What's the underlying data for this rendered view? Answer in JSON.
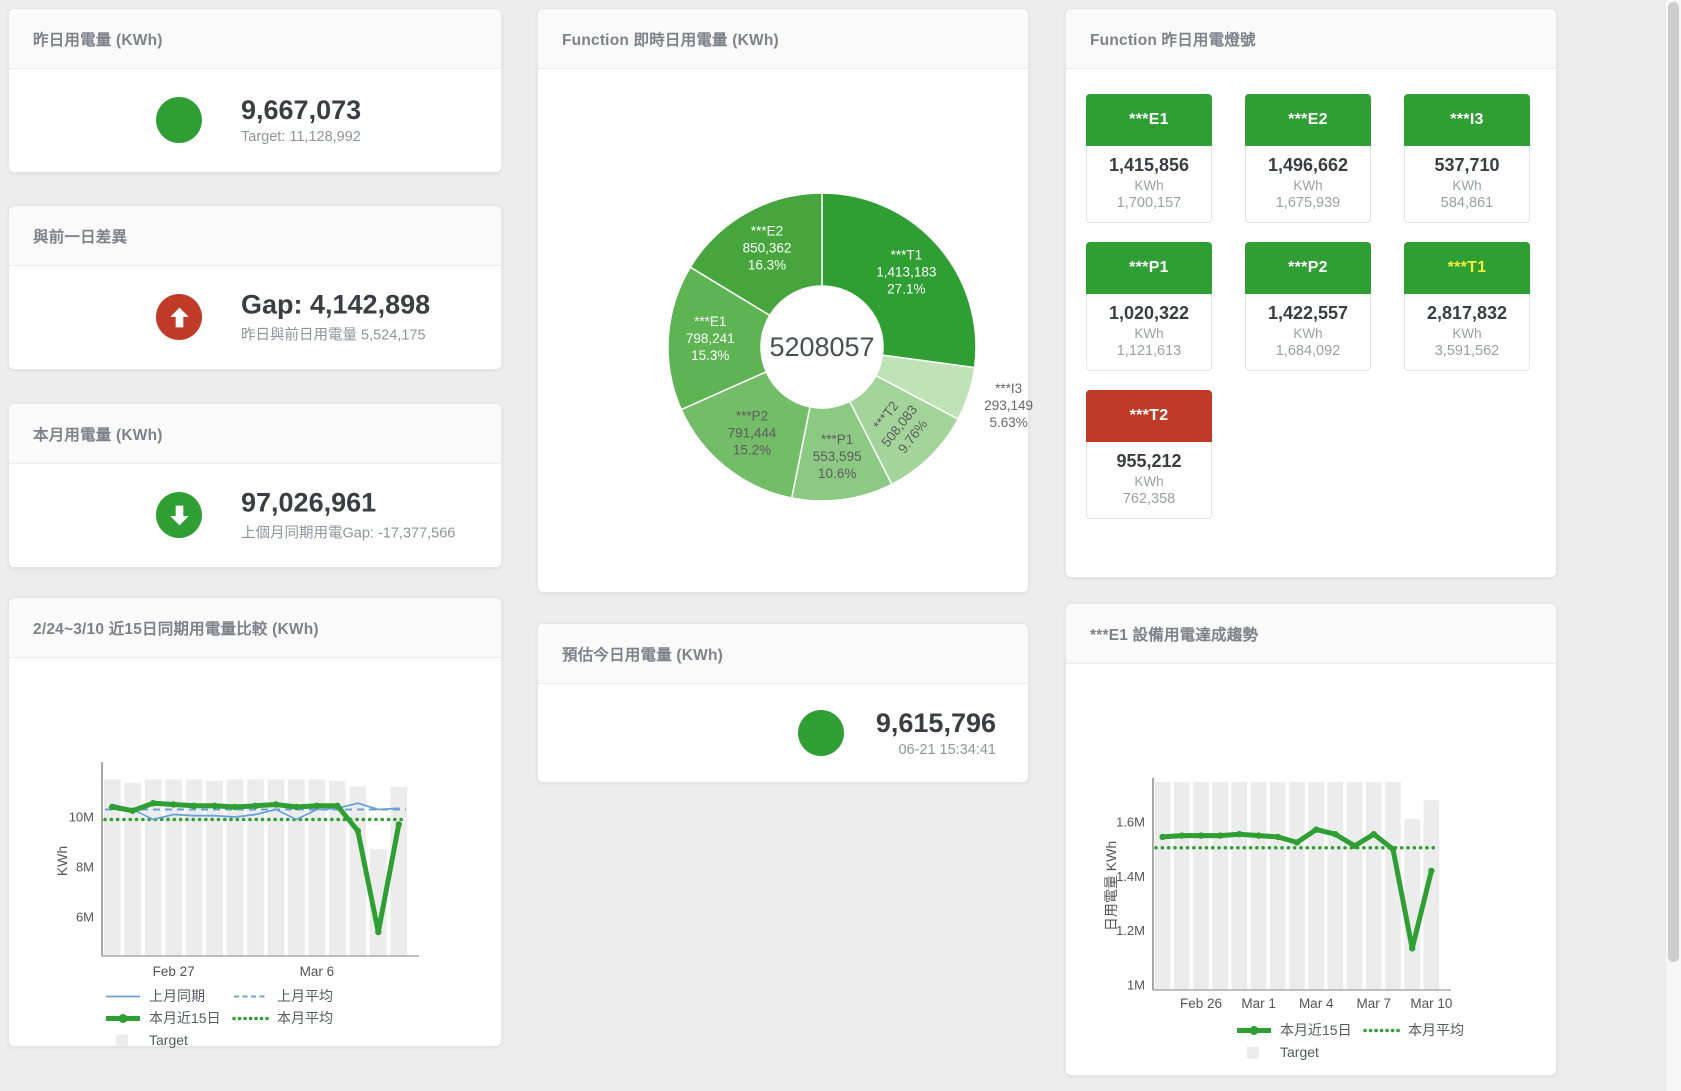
{
  "colors": {
    "green": "#2f9e33",
    "red": "#c03a28",
    "blue": "#68a1d8",
    "bar_gray": "#ececec",
    "yellow_label": "#f6ef3e"
  },
  "kpi_cards": {
    "yesterday": {
      "title": "昨日用電量 (KWh)",
      "value": "9,667,073",
      "subtitle": "Target: 11,128,992",
      "status_color": "#2f9e33",
      "arrow": "none"
    },
    "diff_prev_day": {
      "title": "與前一日差異",
      "value": "Gap: 4,142,898",
      "subtitle": "昨日與前日用電量 5,524,175",
      "status_color": "#c03a28",
      "arrow": "up"
    },
    "month": {
      "title": "本月用電量 (KWh)",
      "value": "97,026,961",
      "subtitle": "上個月同期用電Gap: -17,377,566",
      "status_color": "#2f9e33",
      "arrow": "down"
    },
    "estimate_today": {
      "title": "預估今日用電量 (KWh)",
      "value": "9,615,796",
      "subtitle": "06-21 15:34:41",
      "status_color": "#2f9e33",
      "arrow": "none"
    }
  },
  "tiles_panel": {
    "title": "Function 昨日用電燈號",
    "unit": "KWh",
    "tiles": [
      {
        "label": "***E1",
        "value": "1,415,856",
        "target": "1,700,157",
        "header_color": "#2f9e33",
        "label_color": "#ffffff"
      },
      {
        "label": "***E2",
        "value": "1,496,662",
        "target": "1,675,939",
        "header_color": "#2f9e33",
        "label_color": "#ffffff"
      },
      {
        "label": "***I3",
        "value": "537,710",
        "target": "584,861",
        "header_color": "#2f9e33",
        "label_color": "#ffffff"
      },
      {
        "label": "***P1",
        "value": "1,020,322",
        "target": "1,121,613",
        "header_color": "#2f9e33",
        "label_color": "#ffffff"
      },
      {
        "label": "***P2",
        "value": "1,422,557",
        "target": "1,684,092",
        "header_color": "#2f9e33",
        "label_color": "#ffffff"
      },
      {
        "label": "***T1",
        "value": "2,817,832",
        "target": "3,591,562",
        "header_color": "#2f9e33",
        "label_color": "#f6ef3e"
      },
      {
        "label": "***T2",
        "value": "955,212",
        "target": "762,358",
        "header_color": "#c03a28",
        "label_color": "#ffffff"
      }
    ]
  },
  "chart_data": [
    {
      "id": "function_realtime_donut",
      "type": "pie",
      "title": "Function 即時日用電量 (KWh)",
      "center_total": "5208057",
      "slices": [
        {
          "name": "***T1",
          "value": 1413183,
          "value_label": "1,413,183",
          "pct_label": "27.1%",
          "color": "#2f9e33",
          "text_color": "#ffffff"
        },
        {
          "name": "***I3",
          "value": 293149,
          "value_label": "293,149",
          "pct_label": "5.63%",
          "color": "#bfe2b6",
          "text_color": "#666666",
          "outside": true
        },
        {
          "name": "***T2",
          "value": 508083,
          "value_label": "508,083",
          "pct_label": "9.76%",
          "color": "#a3d59a",
          "text_color": "#5d5d5d",
          "rotate": -52
        },
        {
          "name": "***P1",
          "value": 553595,
          "value_label": "553,595",
          "pct_label": "10.6%",
          "color": "#8cc983",
          "text_color": "#5d5d5d"
        },
        {
          "name": "***P2",
          "value": 791444,
          "value_label": "791,444",
          "pct_label": "15.2%",
          "color": "#74bd68",
          "text_color": "#5d5d5d"
        },
        {
          "name": "***E1",
          "value": 798241,
          "value_label": "798,241",
          "pct_label": "15.3%",
          "color": "#5eb353",
          "text_color": "#ffffff"
        },
        {
          "name": "***E2",
          "value": 850362,
          "value_label": "850,362",
          "pct_label": "16.3%",
          "color": "#46a63d",
          "text_color": "#ffffff"
        }
      ]
    },
    {
      "id": "compare_15day",
      "type": "line",
      "title": "2/24~3/10 近15日同期用電量比較 (KWh)",
      "ylabel": "KWh",
      "ylim_millions": [
        4.44,
        12.04
      ],
      "yticks": [
        {
          "v": 6,
          "label": "6M"
        },
        {
          "v": 8,
          "label": "8M"
        },
        {
          "v": 10,
          "label": "10M"
        }
      ],
      "xticks": [
        {
          "day": 4,
          "label": "Feb 27"
        },
        {
          "day": 11,
          "label": "Mar 6"
        }
      ],
      "target_bars": [
        11.5,
        11.38,
        11.5,
        11.5,
        11.5,
        11.45,
        11.5,
        11.5,
        11.5,
        11.5,
        11.5,
        11.45,
        11.22,
        8.72,
        11.2
      ],
      "series": [
        {
          "name": "上月同期",
          "style": "line",
          "color": "#68a1d8",
          "width": 1.8,
          "values": [
            10.5,
            10.3,
            9.9,
            10.1,
            10.05,
            10.05,
            10.0,
            10.1,
            10.3,
            9.9,
            10.3,
            10.35,
            10.55,
            10.3,
            10.35
          ]
        },
        {
          "name": "上月平均",
          "style": "dashed",
          "color": "#68a1d8",
          "width": 2,
          "constant": 10.3
        },
        {
          "name": "本月近15日",
          "style": "line",
          "color": "#2f9e33",
          "width": 5,
          "values": [
            10.4,
            10.25,
            10.55,
            10.5,
            10.45,
            10.45,
            10.4,
            10.45,
            10.5,
            10.4,
            10.45,
            10.45,
            9.45,
            5.4,
            9.7
          ]
        },
        {
          "name": "本月平均",
          "style": "dotted",
          "color": "#2f9e33",
          "width": 3.5,
          "constant": 9.9
        },
        {
          "name": "Target",
          "style": "bar",
          "color": "#ececec"
        }
      ]
    },
    {
      "id": "e1_trend",
      "type": "line",
      "title": "***E1 設備用電達成趨勢",
      "ylabel": "日用電量 KWh",
      "ylim_millions": [
        0.982,
        1.747
      ],
      "yticks": [
        {
          "v": 1,
          "label": "1M"
        },
        {
          "v": 1.2,
          "label": "1.2M"
        },
        {
          "v": 1.4,
          "label": "1.4M"
        },
        {
          "v": 1.6,
          "label": "1.6M"
        }
      ],
      "xticks": [
        {
          "day": 3,
          "label": "Feb 26"
        },
        {
          "day": 6,
          "label": "Mar 1"
        },
        {
          "day": 9,
          "label": "Mar 4"
        },
        {
          "day": 12,
          "label": "Mar 7"
        },
        {
          "day": 15,
          "label": "Mar 10"
        }
      ],
      "target_bars": [
        1.75,
        1.75,
        1.75,
        1.75,
        1.75,
        1.75,
        1.75,
        1.75,
        1.75,
        1.75,
        1.75,
        1.75,
        1.75,
        1.61,
        1.68
      ],
      "series": [
        {
          "name": "本月近15日",
          "style": "line",
          "color": "#2f9e33",
          "width": 5,
          "values": [
            1.545,
            1.55,
            1.55,
            1.55,
            1.555,
            1.55,
            1.545,
            1.525,
            1.572,
            1.555,
            1.512,
            1.555,
            1.5,
            1.135,
            1.42
          ]
        },
        {
          "name": "本月平均",
          "style": "dotted",
          "color": "#2f9e33",
          "width": 3.5,
          "constant": 1.505
        },
        {
          "name": "Target",
          "style": "bar",
          "color": "#ececec"
        }
      ]
    }
  ]
}
